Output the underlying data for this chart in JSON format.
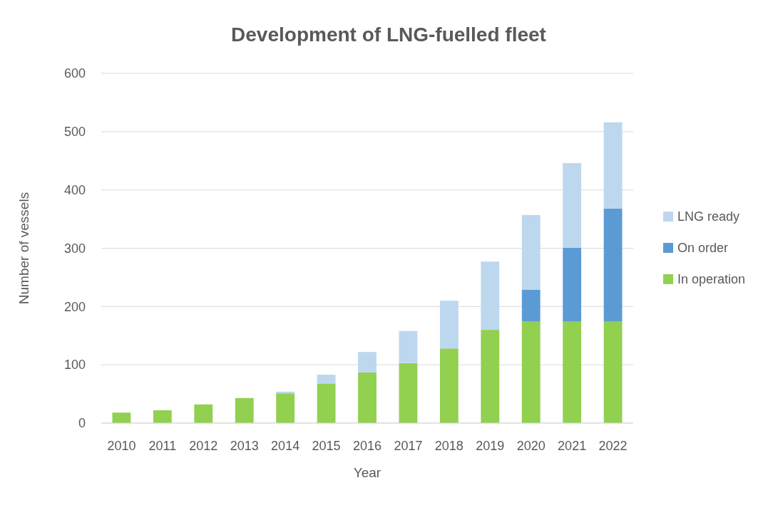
{
  "chart_data": {
    "type": "bar",
    "stacked": true,
    "title": "Development of LNG-fuelled fleet",
    "xlabel": "Year",
    "ylabel": "Number of vessels",
    "categories": [
      "2010",
      "2011",
      "2012",
      "2013",
      "2014",
      "2015",
      "2016",
      "2017",
      "2018",
      "2019",
      "2020",
      "2021",
      "2022"
    ],
    "series": [
      {
        "name": "In operation",
        "color": "#92d050",
        "values": [
          18,
          22,
          32,
          43,
          51,
          68,
          87,
          103,
          128,
          160,
          174,
          174,
          174
        ]
      },
      {
        "name": "On order",
        "color": "#5b9bd5",
        "values": [
          0,
          0,
          0,
          0,
          0,
          0,
          0,
          0,
          0,
          0,
          55,
          127,
          194
        ]
      },
      {
        "name": "LNG ready",
        "color": "#bdd7ee",
        "values": [
          0,
          0,
          0,
          0,
          3,
          15,
          35,
          55,
          82,
          117,
          128,
          145,
          148
        ]
      }
    ],
    "ylim": [
      0,
      600
    ],
    "yticks": [
      0,
      100,
      200,
      300,
      400,
      500,
      600
    ],
    "grid": "y",
    "legend": "right"
  }
}
